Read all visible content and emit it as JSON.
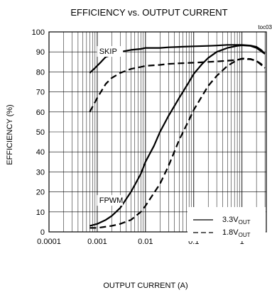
{
  "chart_data": {
    "type": "line",
    "title": "EFFICIENCY vs. OUTPUT CURRENT",
    "corner_tag": "toc03",
    "xlabel": "OUTPUT CURRENT (A)",
    "ylabel": "EFFICIENCY (%)",
    "x_scale": "log",
    "xlim": [
      0.0001,
      3.2
    ],
    "ylim": [
      0,
      100
    ],
    "x_ticks": [
      0.0001,
      0.001,
      0.01,
      0.1,
      1
    ],
    "x_tick_labels": [
      "0.0001",
      "0.001",
      "0.01",
      "0.1",
      "1"
    ],
    "y_ticks": [
      0,
      10,
      20,
      30,
      40,
      50,
      60,
      70,
      80,
      90,
      100
    ],
    "y_tick_labels": [
      "0",
      "10",
      "20",
      "30",
      "40",
      "50",
      "60",
      "70",
      "80",
      "90",
      "100"
    ],
    "grid": true,
    "annotations": [
      {
        "text": "SKIP",
        "x": 0.0011,
        "y": 89
      },
      {
        "text": "FPWM",
        "x": 0.0011,
        "y": 14.5
      }
    ],
    "legend_position": "bottom-right",
    "series": [
      {
        "name": "3.3V",
        "name_sub": "OUT",
        "style": "solid",
        "subseries": [
          {
            "mode": "SKIP",
            "x": [
              0.0007,
              0.0009,
              0.0012,
              0.0015,
              0.002,
              0.003,
              0.005,
              0.008,
              0.01,
              0.02,
              0.03,
              0.05,
              0.1,
              0.2,
              0.3,
              0.5,
              0.7,
              1,
              1.5,
              2,
              2.5,
              3
            ],
            "y": [
              79.5,
              82,
              85,
              87.5,
              88.5,
              90,
              91,
              91.5,
              92,
              92,
              92.3,
              92.5,
              92.8,
              93,
              93.2,
              93.5,
              93.5,
              93.5,
              93.2,
              92.5,
              91,
              89
            ]
          },
          {
            "mode": "FPWM",
            "x": [
              0.0007,
              0.001,
              0.0015,
              0.002,
              0.003,
              0.005,
              0.008,
              0.01,
              0.015,
              0.02,
              0.03,
              0.05,
              0.08,
              0.1,
              0.15,
              0.2,
              0.3,
              0.5,
              0.8,
              1,
              1.5,
              2,
              3
            ],
            "y": [
              3,
              4,
              6,
              8,
              12,
              20,
              29,
              35,
              43,
              50,
              58,
              67,
              75,
              79,
              84,
              87,
              90,
              92,
              93,
              93.3,
              93,
              92,
              89
            ]
          }
        ]
      },
      {
        "name": "1.8V",
        "name_sub": "OUT",
        "style": "dashed",
        "subseries": [
          {
            "mode": "SKIP",
            "x": [
              0.0007,
              0.001,
              0.0015,
              0.002,
              0.003,
              0.005,
              0.008,
              0.01,
              0.02,
              0.03,
              0.05,
              0.1,
              0.2,
              0.3,
              0.5,
              0.8,
              1,
              1.5,
              2,
              2.5,
              3
            ],
            "y": [
              60,
              67,
              74,
              77,
              79.5,
              81.5,
              82.5,
              83,
              83.5,
              84,
              84.3,
              84.6,
              85,
              85.2,
              85.6,
              86,
              86.5,
              86.3,
              85.5,
              84,
              82
            ]
          },
          {
            "mode": "FPWM",
            "x": [
              0.0007,
              0.001,
              0.002,
              0.003,
              0.005,
              0.008,
              0.01,
              0.02,
              0.03,
              0.05,
              0.08,
              0.1,
              0.15,
              0.2,
              0.3,
              0.5,
              0.8,
              1,
              1.5,
              2,
              3
            ],
            "y": [
              2,
              2,
              3,
              4,
              6,
              10,
              13,
              24,
              33,
              46,
              56,
              61,
              68,
              73,
              78,
              83,
              86,
              86.7,
              86.5,
              85.5,
              82
            ]
          }
        ]
      }
    ]
  }
}
